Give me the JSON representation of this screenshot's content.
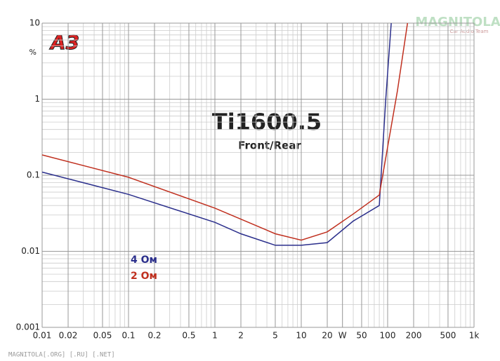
{
  "chart_data": {
    "type": "line",
    "title": "Ti1600.5",
    "subtitle": "Front/Rear",
    "logo": "A3",
    "watermark": "MAGNITOLA",
    "watermark_subtitle": "Car Audio Team",
    "footer": "MAGNITOLA[.ORG] [.RU] [.NET]",
    "y_label": "%",
    "log_x": true,
    "log_y": true,
    "grid": true,
    "xlim": [
      0.01,
      1000
    ],
    "ylim": [
      0.001,
      10
    ],
    "xticks": [
      0.01,
      0.02,
      0.05,
      0.1,
      0.2,
      0.5,
      1,
      2,
      5,
      10,
      20,
      {
        "value": 30,
        "label": "W"
      },
      50,
      100,
      200,
      500,
      {
        "value": 1000,
        "label": "1k"
      }
    ],
    "yticks": [
      10,
      1,
      0.1,
      0.01,
      0.001
    ],
    "series": [
      {
        "name": "4 Ом",
        "color": "#2b2f8c",
        "x": [
          0.01,
          0.1,
          1,
          2,
          5,
          10,
          20,
          40,
          80,
          95,
          110
        ],
        "values": [
          0.11,
          0.056,
          0.024,
          0.017,
          0.012,
          0.012,
          0.013,
          0.025,
          0.04,
          1,
          10
        ]
      },
      {
        "name": "2 Ом",
        "color": "#c0301f",
        "x": [
          0.01,
          0.1,
          1,
          5,
          10,
          20,
          40,
          80,
          130,
          170
        ],
        "values": [
          0.185,
          0.094,
          0.037,
          0.017,
          0.014,
          0.018,
          0.031,
          0.055,
          1.3,
          10
        ]
      }
    ]
  }
}
